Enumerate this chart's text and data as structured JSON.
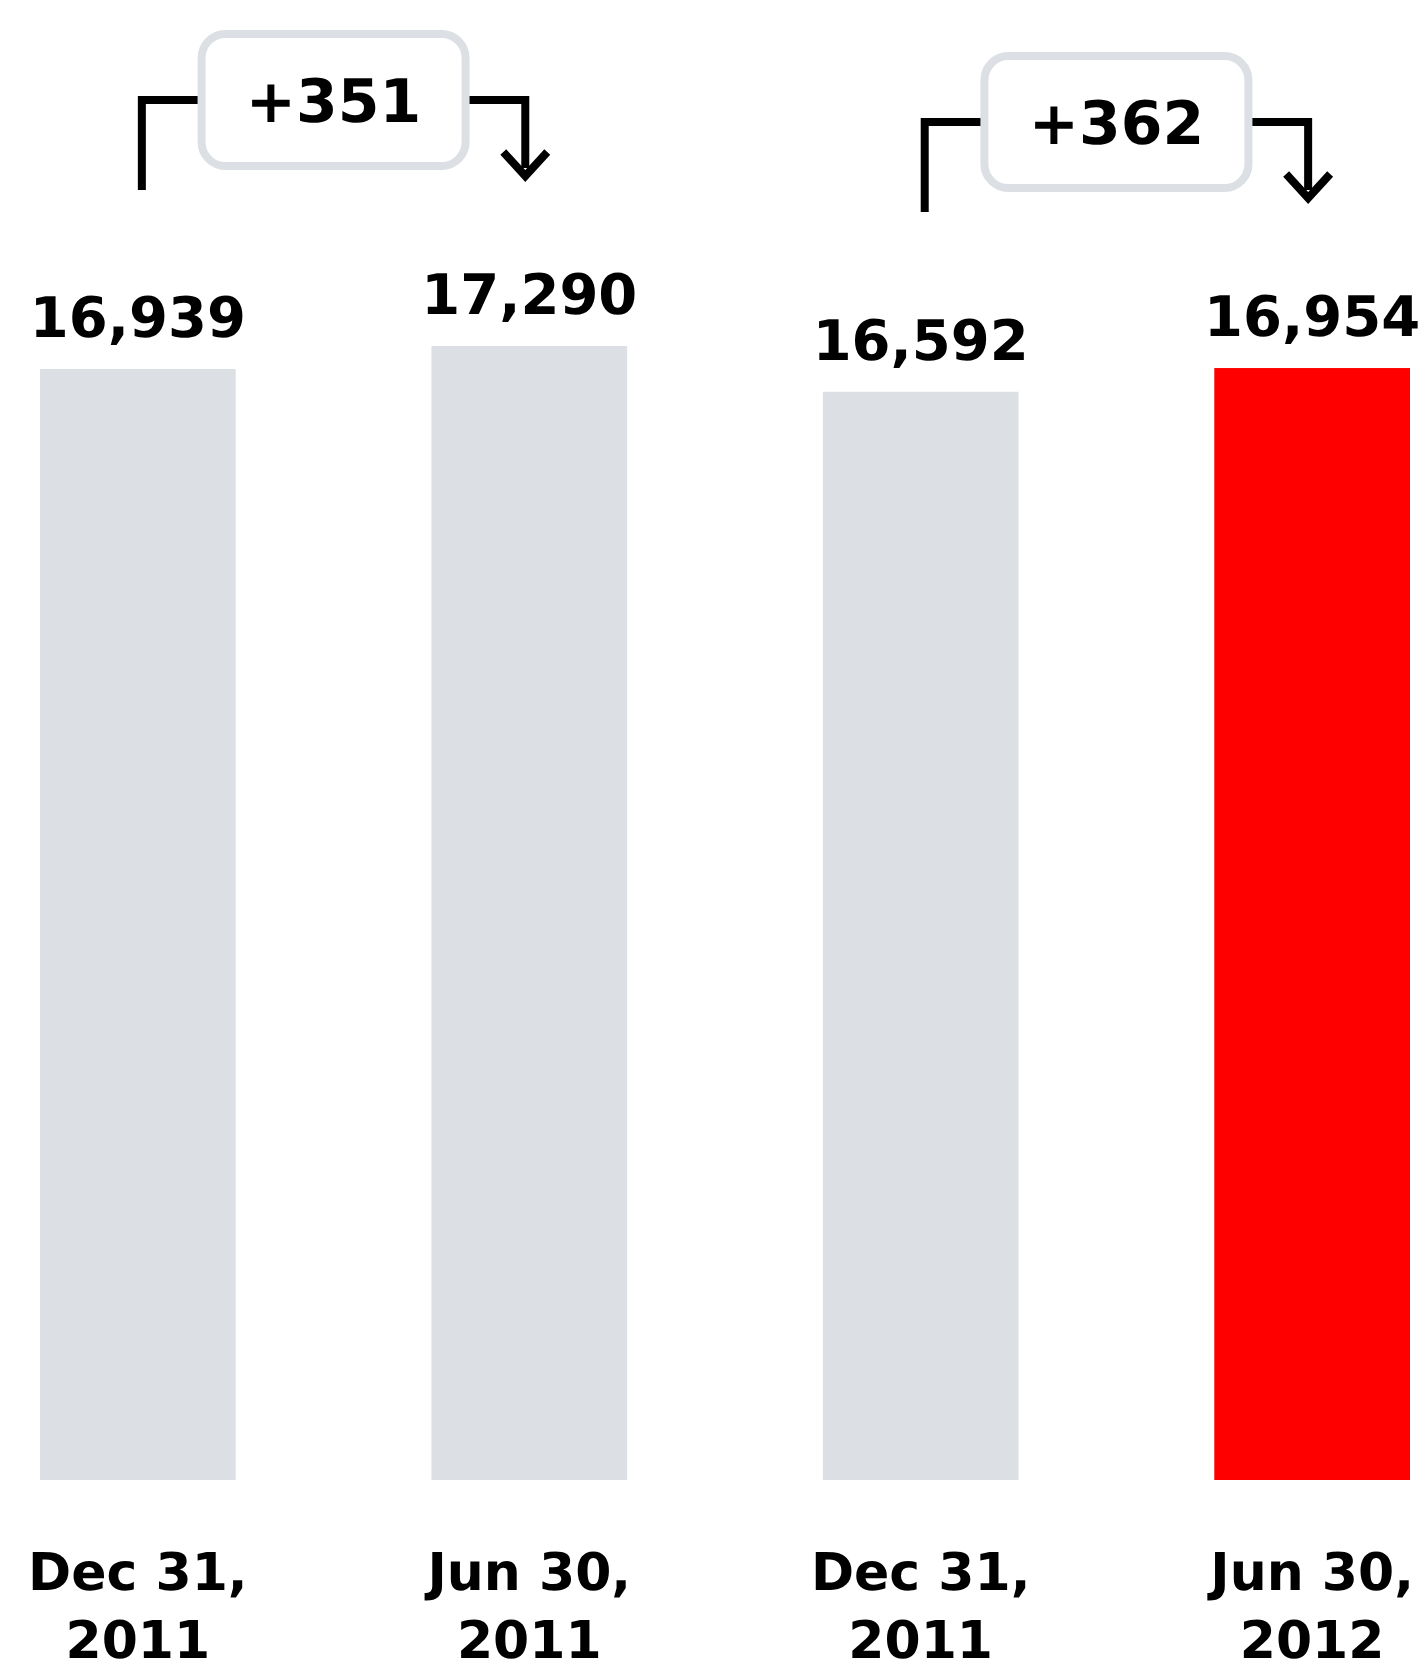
{
  "chart_data": {
    "type": "bar",
    "categories": [
      "Dec 31, 2011",
      "Jun 30, 2011",
      "Dec 31, 2011",
      "Jun 30, 2012"
    ],
    "values": [
      16939,
      17290,
      16592,
      16954
    ],
    "value_labels": [
      "16,939",
      "17,290",
      "16,592",
      "16,954"
    ],
    "colors": [
      "#dcdfe3",
      "#dcdfe3",
      "#dcdfe3",
      "#ff0000"
    ],
    "annotations": [
      "+351",
      "+362"
    ]
  }
}
